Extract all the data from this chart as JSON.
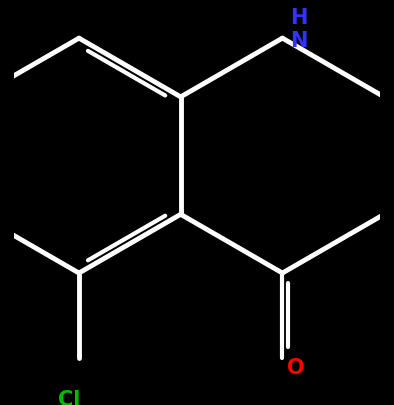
{
  "bg_color": "#000000",
  "bond_color": "#ffffff",
  "N_color": "#3333ff",
  "O_color": "#ff0000",
  "Cl_color": "#00bb00",
  "NH_text": "H\nN",
  "O_text": "O",
  "Cl_text": "Cl",
  "lw": 3.5,
  "double_lw": 3.0,
  "figsize": [
    3.94,
    4.06
  ],
  "dpi": 100,
  "xlim": [
    -2.8,
    2.8
  ],
  "ylim": [
    -3.2,
    2.6
  ],
  "font_size": 15
}
